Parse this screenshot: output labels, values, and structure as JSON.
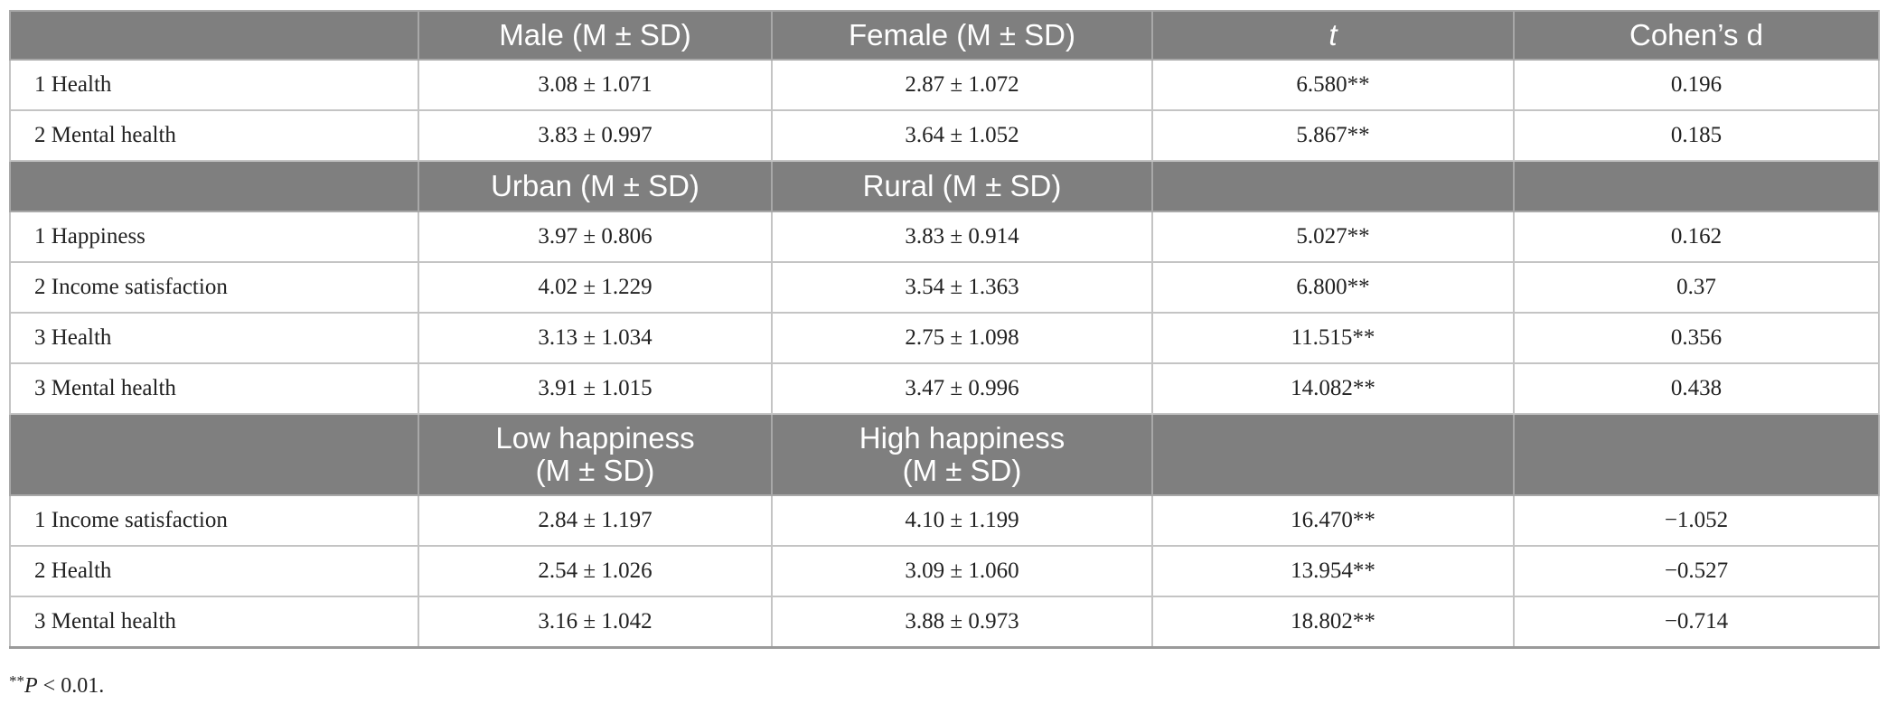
{
  "groups": [
    {
      "header": [
        "",
        "Male (M ± SD)",
        "Female (M ± SD)",
        "t",
        "Cohen’s d"
      ],
      "rows": [
        {
          "label": "1 Health",
          "a": "3.08 ± 1.071",
          "b": "2.87 ± 1.072",
          "t": "6.580**",
          "d": "0.196"
        },
        {
          "label": "2 Mental health",
          "a": "3.83 ± 0.997",
          "b": "3.64 ± 1.052",
          "t": "5.867**",
          "d": "0.185"
        }
      ]
    },
    {
      "header": [
        "",
        "Urban (M ± SD)",
        "Rural (M ± SD)",
        "",
        ""
      ],
      "rows": [
        {
          "label": "1 Happiness",
          "a": "3.97 ± 0.806",
          "b": "3.83 ± 0.914",
          "t": "5.027**",
          "d": "0.162"
        },
        {
          "label": "2 Income satisfaction",
          "a": "4.02 ± 1.229",
          "b": "3.54 ± 1.363",
          "t": "6.800**",
          "d": "0.37"
        },
        {
          "label": "3 Health",
          "a": "3.13 ± 1.034",
          "b": "2.75 ± 1.098",
          "t": "11.515**",
          "d": "0.356"
        },
        {
          "label": "3 Mental health",
          "a": "3.91 ± 1.015",
          "b": "3.47 ± 0.996",
          "t": "14.082**",
          "d": "0.438"
        }
      ]
    },
    {
      "header": [
        "",
        "Low happiness\n(M ± SD)",
        "High happiness\n(M ± SD)",
        "",
        ""
      ],
      "rows": [
        {
          "label": "1 Income satisfaction",
          "a": "2.84 ± 1.197",
          "b": "4.10 ± 1.199",
          "t": "16.470**",
          "d": "−1.052"
        },
        {
          "label": "2 Health",
          "a": "2.54 ± 1.026",
          "b": "3.09 ± 1.060",
          "t": "13.954**",
          "d": "−0.527"
        },
        {
          "label": "3 Mental health",
          "a": "3.16 ± 1.042",
          "b": "3.88 ± 0.973",
          "t": "18.802**",
          "d": "−0.714"
        }
      ]
    }
  ],
  "note": {
    "marker": "**",
    "var": "P",
    "text": " < 0.01."
  },
  "colors": {
    "header_bg": "#7f7f7f",
    "header_text": "#ffffff",
    "grid": "#c4c4c4"
  }
}
